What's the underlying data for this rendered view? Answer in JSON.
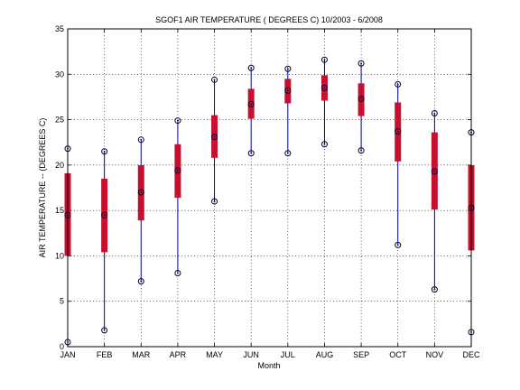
{
  "chart_data": {
    "type": "boxplot",
    "title": "SGOF1  AIR TEMPERATURE ( DEGREES C) 10/2003 - 6/2008",
    "xlabel": "Month",
    "ylabel": "AIR TEMPERATURE -- (DEGREES C)",
    "ylim": [
      0,
      35
    ],
    "yticks": [
      "0",
      "5",
      "10",
      "15",
      "20",
      "25",
      "30",
      "35"
    ],
    "grid": true,
    "categories": [
      "JAN",
      "FEB",
      "MAR",
      "APR",
      "MAY",
      "JUN",
      "JUL",
      "AUG",
      "SEP",
      "OCT",
      "NOV",
      "DEC"
    ],
    "min": [
      0.5,
      1.8,
      7.2,
      8.1,
      16.0,
      21.3,
      21.3,
      22.3,
      21.6,
      11.2,
      6.3,
      1.6
    ],
    "q1": [
      10.0,
      10.4,
      13.9,
      16.4,
      20.8,
      25.1,
      26.8,
      27.1,
      25.4,
      20.4,
      15.1,
      10.6
    ],
    "median": [
      14.5,
      14.5,
      17.0,
      19.4,
      23.1,
      26.7,
      28.2,
      28.5,
      27.3,
      23.7,
      19.3,
      15.3
    ],
    "q3": [
      19.1,
      18.5,
      20.0,
      22.3,
      25.5,
      28.4,
      29.5,
      29.9,
      29.0,
      26.9,
      23.6,
      20.0
    ],
    "max": [
      21.8,
      21.5,
      22.8,
      24.9,
      29.4,
      30.7,
      30.6,
      31.6,
      31.2,
      28.9,
      25.7,
      23.6
    ],
    "colors": {
      "box": "#c8102e",
      "whisker": "#0000aa",
      "marker": "#000033"
    }
  }
}
